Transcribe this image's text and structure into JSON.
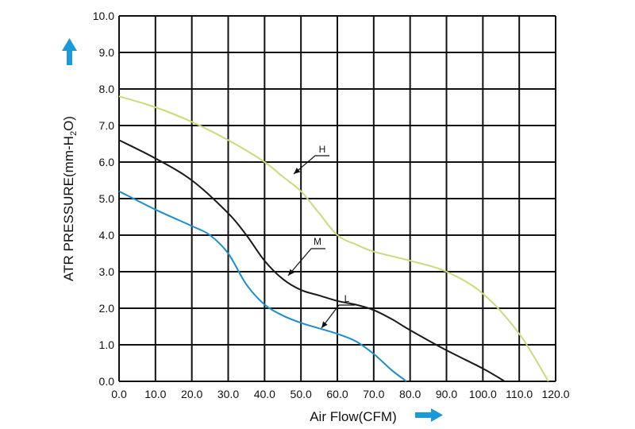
{
  "chart_data": {
    "type": "line",
    "xlabel": "Air Flow(CFM)",
    "ylabel_main": "ATR PRESSURE(mm-H",
    "ylabel_sub": "2",
    "ylabel_end": "O)",
    "xlim": [
      0,
      120
    ],
    "ylim": [
      0,
      10
    ],
    "grid": true,
    "x_ticks": [
      "0.0",
      "10.0",
      "20.0",
      "30.0",
      "40.0",
      "50.0",
      "60.0",
      "70.0",
      "80.0",
      "90.0",
      "100.0",
      "110.0",
      "120.0"
    ],
    "y_ticks": [
      "0.0",
      "1.0",
      "2.0",
      "3.0",
      "4.0",
      "5.0",
      "6.0",
      "7.0",
      "8.0",
      "9.0",
      "10.0"
    ],
    "arrow_color": "#1a9ad6",
    "series": [
      {
        "name": "H",
        "color": "#c8dc78",
        "x": [
          0,
          10,
          20,
          30,
          40,
          45,
          50,
          55,
          60,
          65,
          70,
          80,
          90,
          100,
          110,
          118
        ],
        "y": [
          7.8,
          7.5,
          7.1,
          6.6,
          6.0,
          5.6,
          5.2,
          4.6,
          4.0,
          3.75,
          3.55,
          3.3,
          3.0,
          2.4,
          1.3,
          0.0
        ]
      },
      {
        "name": "M",
        "color": "#1a1a1a",
        "x": [
          0,
          10,
          20,
          30,
          35,
          40,
          45,
          50,
          55,
          60,
          65,
          70,
          75,
          80,
          90,
          100,
          106
        ],
        "y": [
          6.6,
          6.1,
          5.5,
          4.6,
          4.0,
          3.3,
          2.8,
          2.5,
          2.35,
          2.2,
          2.1,
          1.95,
          1.7,
          1.4,
          0.85,
          0.35,
          0.0
        ]
      },
      {
        "name": "L",
        "color": "#1a8fd0",
        "x": [
          0,
          10,
          20,
          25,
          30,
          35,
          40,
          45,
          50,
          55,
          60,
          65,
          70,
          75,
          79
        ],
        "y": [
          5.2,
          4.7,
          4.25,
          4.0,
          3.5,
          2.65,
          2.1,
          1.8,
          1.6,
          1.45,
          1.3,
          1.1,
          0.75,
          0.3,
          0.0
        ]
      }
    ],
    "annotations": [
      {
        "label": "H",
        "series": "H"
      },
      {
        "label": "M",
        "series": "M"
      },
      {
        "label": "L",
        "series": "L"
      }
    ]
  }
}
